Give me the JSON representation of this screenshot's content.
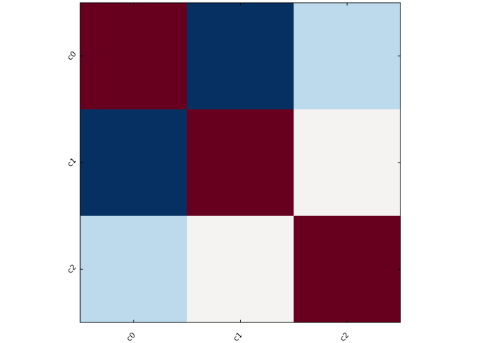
{
  "chart_data": {
    "type": "heatmap",
    "title": "",
    "xlabel": "",
    "ylabel": "",
    "x_categories": [
      "c0",
      "c1",
      "c2"
    ],
    "y_categories": [
      "c0",
      "c1",
      "c2"
    ],
    "values": [
      [
        1.0,
        -1.0,
        -0.4
      ],
      [
        -1.0,
        1.0,
        0.0
      ],
      [
        -0.4,
        0.0,
        1.0
      ]
    ],
    "color_range": [
      -1,
      1
    ],
    "colormap": "RdBu_r",
    "colors": {
      "max": "#67001f",
      "min": "#053061",
      "light_blue": "#bcdaeb",
      "neutral": "#f5f3f2"
    },
    "grid": false,
    "legend": "none"
  }
}
